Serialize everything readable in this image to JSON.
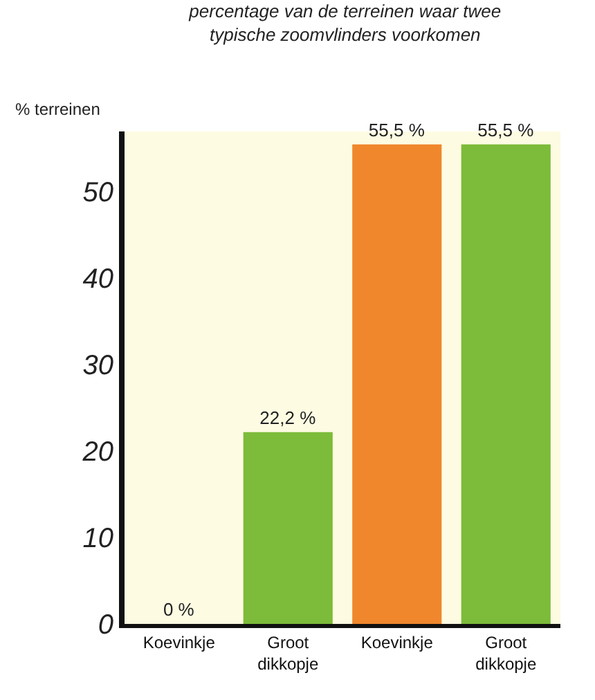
{
  "chart_data": {
    "type": "bar",
    "title": "percentage van de terreinen waar twee typische zoomvlinders voorkomen",
    "ylabel": "% terreinen",
    "categories": [
      "Koevinkje",
      "Groot dikkopje",
      "Koevinkje",
      "Groot dikkopje"
    ],
    "values": [
      0,
      22.2,
      55.5,
      55.5
    ],
    "value_labels": [
      "0 %",
      "22,2 %",
      "55,5 %",
      "55,5 %"
    ],
    "colors": [
      "#7dbb3a",
      "#7dbb3a",
      "#f0872c",
      "#7dbb3a"
    ],
    "ylim": [
      0,
      57
    ],
    "yticks": [
      0,
      10,
      20,
      30,
      40,
      50
    ],
    "grid": false
  }
}
